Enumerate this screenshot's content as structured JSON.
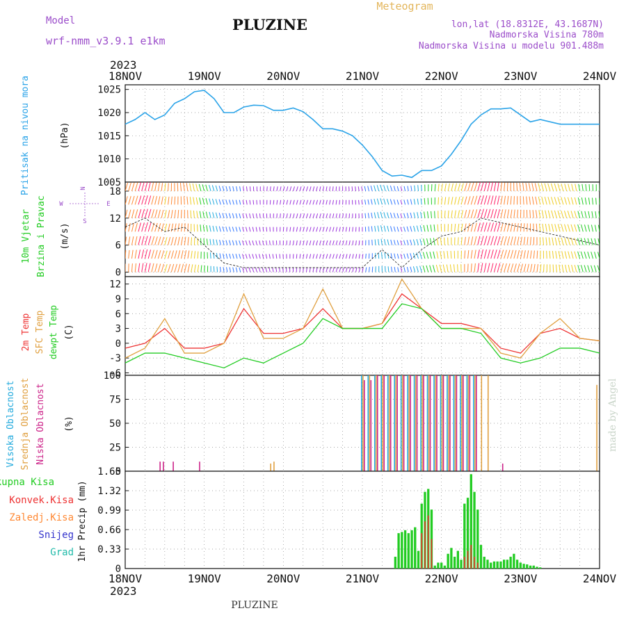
{
  "header": {
    "model_label": "Model",
    "model_name": "wrf-nmm_v3.9.1 e1km",
    "station": "PLUZINE",
    "product": "Meteogram",
    "lonlat": "lon,lat (18.8312E, 43.1687N)",
    "elevation": "Nadmorska Visina 780m",
    "model_elevation": "Nadmorska Visina u modelu 901.488m",
    "credit": "made by Angel",
    "footer_station": "PLUZINE"
  },
  "colors": {
    "pressure": "#2aa3e8",
    "temp2m": "#ee3333",
    "sfc_temp": "#e0a040",
    "dewpt": "#22cc22",
    "cloud_high": "#22aadd",
    "cloud_mid": "#e0a040",
    "cloud_low": "#cc2288",
    "precip_total": "#22cc22",
    "precip_conv": "#ee3333",
    "precip_frz": "#ff8833",
    "precip_snow": "#3333cc",
    "precip_grad": "#22bbaa",
    "title_purple": "#9b4dca",
    "title_gold": "#e3b55a"
  },
  "chart_data": [
    {
      "id": "pressure",
      "type": "line",
      "ylabel_name": "Pritisak na nivou mora",
      "ylabel_unit": "(hPa)",
      "ylim": [
        1005,
        1026
      ],
      "yticks": [
        1005,
        1010,
        1015,
        1020,
        1025
      ],
      "grid": true,
      "x": [
        0,
        3,
        6,
        9,
        12,
        15,
        18,
        21,
        24,
        27,
        30,
        33,
        36,
        39,
        42,
        45,
        48,
        51,
        54,
        57,
        60,
        63,
        66,
        69,
        72,
        75,
        78,
        81,
        84,
        87,
        90,
        93,
        96,
        99,
        102,
        105,
        108,
        111,
        114,
        117,
        120,
        123,
        126,
        129,
        132,
        135,
        138,
        141,
        144
      ],
      "series": [
        {
          "values": [
            1017.5,
            1018.5,
            1020,
            1018.5,
            1019.5,
            1022,
            1023,
            1024.5,
            1024.8,
            1023,
            1020,
            1020,
            1021.2,
            1021.6,
            1021.5,
            1020.5,
            1020.5,
            1021,
            1020.2,
            1018.5,
            1016.5,
            1016.5,
            1016,
            1015,
            1013,
            1010.5,
            1007.5,
            1006.3,
            1006.5,
            1006,
            1007.5,
            1007.5,
            1008.5,
            1011,
            1014,
            1017.5,
            1019.5,
            1020.8,
            1020.8,
            1021,
            1019.5,
            1018,
            1018.5,
            1018,
            1017.5,
            1017.5,
            1017.5,
            1017.5,
            1017.5
          ]
        }
      ]
    },
    {
      "id": "wind",
      "type": "scatter",
      "ylabel_name": "10m Vjetar",
      "ylabel_name2": "Brzina i Pravac",
      "ylabel_unit": "(m/s)",
      "compass": "N S W E",
      "ylim": [
        -1,
        20
      ],
      "yticks": [
        0,
        6,
        12,
        18
      ],
      "grid": true,
      "x": [
        0,
        6,
        12,
        18,
        24,
        30,
        36,
        42,
        48,
        54,
        60,
        66,
        72,
        78,
        84,
        90,
        96,
        102,
        108,
        114,
        120,
        126,
        132,
        138,
        144
      ],
      "series": [
        {
          "values": [
            10,
            12,
            9,
            10,
            6,
            2,
            1,
            1,
            1,
            1,
            1,
            1,
            1,
            5,
            1,
            5,
            8,
            9,
            12,
            11,
            10,
            9,
            8,
            7,
            6
          ]
        }
      ]
    },
    {
      "id": "temperature",
      "type": "line",
      "ylabel_names": [
        "2m Temp",
        "SFC Temp",
        "dewpt Temp"
      ],
      "ylabel_unit": "(C)",
      "ylim": [
        -6.5,
        13.5
      ],
      "yticks": [
        -6,
        -3,
        0,
        3,
        6,
        9,
        12
      ],
      "grid": true,
      "x": [
        0,
        6,
        12,
        18,
        24,
        30,
        36,
        42,
        48,
        54,
        60,
        66,
        72,
        78,
        84,
        90,
        96,
        102,
        108,
        114,
        120,
        126,
        132,
        138,
        144
      ],
      "series": [
        {
          "name": "2m Temp",
          "values": [
            -1,
            0,
            3,
            -1,
            -1,
            0,
            7,
            2,
            2,
            3,
            7,
            3,
            3,
            4,
            10,
            7,
            4,
            4,
            3,
            -1,
            -2,
            2,
            3,
            1,
            0.5
          ]
        },
        {
          "name": "SFC Temp",
          "values": [
            -3,
            -1,
            5,
            -2,
            -2,
            0,
            10,
            1,
            1,
            3,
            11,
            3,
            3,
            4,
            13,
            7,
            3,
            3,
            3,
            -2,
            -3,
            2,
            5,
            1,
            0.5
          ]
        },
        {
          "name": "dewpt Temp",
          "values": [
            -4,
            -2,
            -2,
            -3,
            -4,
            -5,
            -3,
            -4,
            -2,
            0,
            5,
            3,
            3,
            3,
            8,
            7,
            3,
            3,
            2,
            -3,
            -4,
            -3,
            -1,
            -1,
            -2
          ]
        }
      ]
    },
    {
      "id": "clouds",
      "type": "bar",
      "ylabel_names": [
        "Visoka Oblacnost",
        "Srednja Oblacnost",
        "Niska Oblacnost"
      ],
      "ylabel_unit": "(%)",
      "ylim": [
        0,
        100
      ],
      "yticks": [
        0,
        25,
        50,
        75,
        100
      ],
      "grid": true,
      "x": [
        10,
        11,
        14,
        22,
        44,
        45,
        72,
        74,
        76,
        78,
        80,
        82,
        84,
        86,
        88,
        90,
        92,
        94,
        96,
        98,
        100,
        102,
        104,
        106,
        108,
        110,
        114,
        143
      ],
      "series": [
        {
          "name": "Visoka Oblacnost",
          "values": [
            0,
            0,
            0,
            0,
            0,
            0,
            100,
            100,
            100,
            100,
            100,
            100,
            100,
            100,
            100,
            100,
            100,
            100,
            100,
            100,
            100,
            100,
            100,
            100,
            0,
            0,
            0,
            0
          ]
        },
        {
          "name": "Srednja Oblacnost",
          "values": [
            0,
            0,
            0,
            0,
            8,
            10,
            100,
            100,
            100,
            100,
            100,
            100,
            100,
            100,
            100,
            100,
            100,
            100,
            100,
            100,
            100,
            100,
            100,
            100,
            100,
            100,
            0,
            90
          ]
        },
        {
          "name": "Niska Oblacnost",
          "values": [
            10,
            10,
            10,
            10,
            0,
            0,
            95,
            95,
            100,
            100,
            100,
            100,
            100,
            100,
            100,
            100,
            100,
            100,
            100,
            100,
            100,
            100,
            100,
            100,
            0,
            0,
            8,
            0
          ]
        }
      ]
    },
    {
      "id": "precip",
      "type": "bar",
      "ylabel_names": [
        "Ukupna Kisa",
        "Konvek.Kisa",
        "Zaledj.Kisa",
        "Snijeg",
        "Grad"
      ],
      "ylabel_unit": "1hr Precip (mm)",
      "ylim": [
        0,
        1.65
      ],
      "yticks": [
        0,
        0.33,
        0.66,
        0.99,
        1.32,
        1.65
      ],
      "grid": true,
      "x": [
        82,
        83,
        84,
        85,
        86,
        87,
        88,
        89,
        90,
        91,
        92,
        93,
        94,
        95,
        96,
        97,
        98,
        99,
        100,
        101,
        102,
        103,
        104,
        105,
        106,
        107,
        108,
        109,
        110,
        111,
        112,
        113,
        114,
        115,
        116,
        117,
        118,
        119,
        120,
        121,
        122,
        123,
        124,
        125,
        126
      ],
      "series": [
        {
          "name": "Ukupna Kisa",
          "values": [
            0.2,
            0.6,
            0.62,
            0.65,
            0.6,
            0.65,
            0.7,
            0.3,
            1.1,
            1.3,
            1.35,
            1.0,
            0.05,
            0.1,
            0.1,
            0.05,
            0.25,
            0.35,
            0.2,
            0.3,
            0.15,
            1.1,
            1.2,
            1.6,
            1.3,
            1.0,
            0.4,
            0.2,
            0.15,
            0.1,
            0.12,
            0.12,
            0.12,
            0.15,
            0.15,
            0.2,
            0.25,
            0.15,
            0.1,
            0.08,
            0.07,
            0.05,
            0.05,
            0.03,
            0.02
          ]
        },
        {
          "name": "Konvek.Kisa",
          "values": [
            0,
            0,
            0,
            0,
            0,
            0,
            0,
            0,
            0.6,
            0.8,
            0.9,
            0.5,
            0,
            0,
            0,
            0,
            0,
            0,
            0,
            0,
            0,
            0.2,
            0.3,
            0.4,
            0.2,
            0.1,
            0,
            0,
            0,
            0,
            0,
            0,
            0,
            0,
            0,
            0,
            0,
            0,
            0,
            0,
            0,
            0,
            0,
            0,
            0
          ]
        }
      ]
    }
  ],
  "time_axis": {
    "year": "2023",
    "labels": [
      "18NOV",
      "19NOV",
      "20NOV",
      "21NOV",
      "22NOV",
      "23NOV",
      "24NOV"
    ],
    "range_hours": [
      0,
      144
    ]
  }
}
